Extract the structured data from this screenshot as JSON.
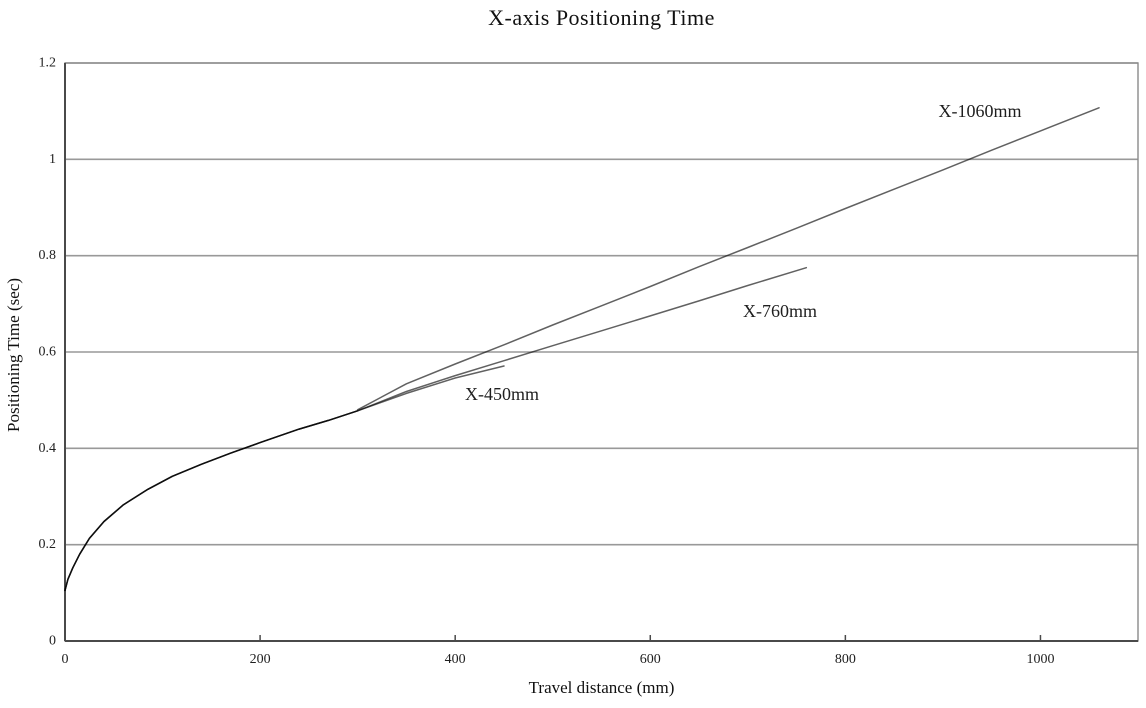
{
  "chart_data": {
    "type": "line",
    "title": "X-axis Positioning Time",
    "xlabel": "Travel distance (mm)",
    "ylabel": "Positioning Time (sec)",
    "xlim": [
      0,
      1100
    ],
    "ylim": [
      0,
      1.2
    ],
    "x_ticks": [
      {
        "value": 0,
        "label": "0"
      },
      {
        "value": 200,
        "label": "200"
      },
      {
        "value": 400,
        "label": "400"
      },
      {
        "value": 600,
        "label": "600"
      },
      {
        "value": 800,
        "label": "800"
      },
      {
        "value": 1000,
        "label": "1000"
      }
    ],
    "y_ticks": [
      {
        "value": 0,
        "label": "0"
      },
      {
        "value": 0.2,
        "label": "0.2"
      },
      {
        "value": 0.4,
        "label": "0.4"
      },
      {
        "value": 0.6,
        "label": "0.6"
      },
      {
        "value": 0.8,
        "label": "0.8"
      },
      {
        "value": 1,
        "label": "1"
      },
      {
        "value": 1.2,
        "label": "1.2"
      }
    ],
    "grid": "horizontal-gridlines-only, full plot border",
    "legend": "inline text labels beside each curve",
    "shared_curve": [
      [
        0,
        0.105
      ],
      [
        3,
        0.128
      ],
      [
        8,
        0.152
      ],
      [
        15,
        0.18
      ],
      [
        25,
        0.213
      ],
      [
        40,
        0.248
      ],
      [
        60,
        0.283
      ],
      [
        85,
        0.315
      ],
      [
        110,
        0.342
      ],
      [
        140,
        0.367
      ],
      [
        170,
        0.39
      ],
      [
        200,
        0.412
      ],
      [
        240,
        0.44
      ],
      [
        270,
        0.458
      ],
      [
        300,
        0.478
      ]
    ],
    "series": [
      {
        "name": "X-450mm",
        "label": "X-450mm",
        "label_at": [
          448,
          0.513
        ],
        "points": [
          [
            300,
            0.478
          ],
          [
            350,
            0.514
          ],
          [
            400,
            0.546
          ],
          [
            450,
            0.571
          ]
        ]
      },
      {
        "name": "X-760mm",
        "label": "X-760mm",
        "label_at": [
          733,
          0.685
        ],
        "points": [
          [
            300,
            0.478
          ],
          [
            350,
            0.518
          ],
          [
            400,
            0.551
          ],
          [
            450,
            0.582
          ],
          [
            500,
            0.613
          ],
          [
            550,
            0.644
          ],
          [
            600,
            0.675
          ],
          [
            650,
            0.706
          ],
          [
            700,
            0.738
          ],
          [
            760,
            0.775
          ]
        ]
      },
      {
        "name": "X-1060mm",
        "label": "X-1060mm",
        "label_at": [
          938,
          1.1
        ],
        "points": [
          [
            300,
            0.48
          ],
          [
            350,
            0.534
          ],
          [
            400,
            0.575
          ],
          [
            450,
            0.615
          ],
          [
            500,
            0.656
          ],
          [
            550,
            0.696
          ],
          [
            600,
            0.736
          ],
          [
            650,
            0.777
          ],
          [
            700,
            0.817
          ],
          [
            750,
            0.857
          ],
          [
            800,
            0.898
          ],
          [
            850,
            0.938
          ],
          [
            900,
            0.978
          ],
          [
            950,
            1.019
          ],
          [
            1000,
            1.059
          ],
          [
            1060,
            1.107
          ]
        ]
      }
    ],
    "colors": {
      "background": "#ffffff",
      "curve": "#000000",
      "curve_opacity": 0.62,
      "grid": "#999999",
      "border": "#8a8a8a",
      "axis": "#4a4a4a",
      "text": "#1f1f1f"
    }
  }
}
